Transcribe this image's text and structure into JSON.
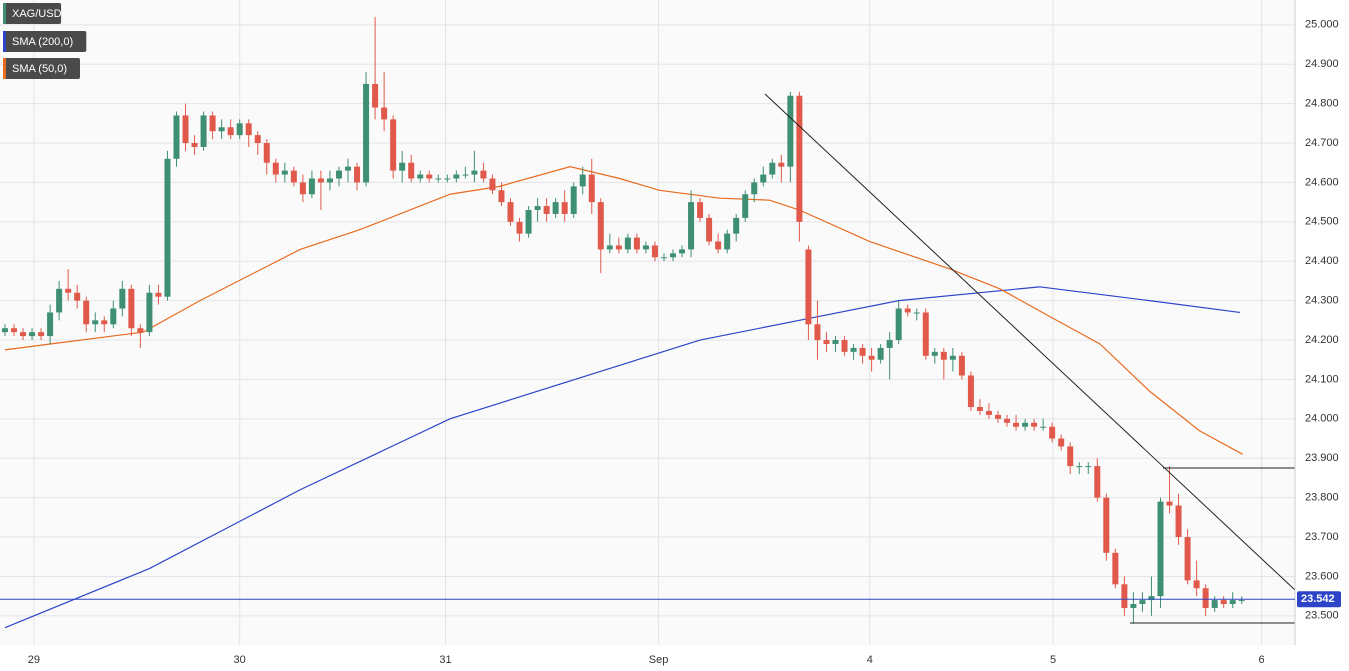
{
  "chart_data": {
    "type": "candlestick",
    "title": "XAG/USD",
    "up_color": "#3e8f74",
    "down_color": "#e0594a",
    "ylim": [
      23.426,
      25.063
    ],
    "yticks": [
      {
        "value": 23.5,
        "label": "23.500"
      },
      {
        "value": 23.6,
        "label": "23.600"
      },
      {
        "value": 23.7,
        "label": "23.700"
      },
      {
        "value": 23.8,
        "label": "23.800"
      },
      {
        "value": 23.9,
        "label": "23.900"
      },
      {
        "value": 24.0,
        "label": "24.000"
      },
      {
        "value": 24.1,
        "label": "24.100"
      },
      {
        "value": 24.2,
        "label": "24.200"
      },
      {
        "value": 24.3,
        "label": "24.300"
      },
      {
        "value": 24.4,
        "label": "24.400"
      },
      {
        "value": 24.5,
        "label": "24.500"
      },
      {
        "value": 24.6,
        "label": "24.600"
      },
      {
        "value": 24.7,
        "label": "24.700"
      },
      {
        "value": 24.8,
        "label": "24.800"
      },
      {
        "value": 24.9,
        "label": "24.900"
      },
      {
        "value": 25.0,
        "label": "25.000"
      }
    ],
    "xlim": [
      -0.55,
      142.9
    ],
    "xticks": [
      {
        "value": 3.2,
        "label": "29"
      },
      {
        "value": 26.0,
        "label": "30"
      },
      {
        "value": 48.8,
        "label": "31"
      },
      {
        "value": 72.4,
        "label": "Sep"
      },
      {
        "value": 95.8,
        "label": "4"
      },
      {
        "value": 116.1,
        "label": "5"
      },
      {
        "value": 139.2,
        "label": "6"
      }
    ],
    "grid": true,
    "last_price": 23.542,
    "candles": [
      [
        24.22,
        24.24,
        24.21,
        24.23
      ],
      [
        24.23,
        24.24,
        24.21,
        24.22
      ],
      [
        24.22,
        24.23,
        24.2,
        24.21
      ],
      [
        24.21,
        24.23,
        24.2,
        24.22
      ],
      [
        24.22,
        24.23,
        24.2,
        24.21
      ],
      [
        24.21,
        24.29,
        24.19,
        24.27
      ],
      [
        24.27,
        24.35,
        24.25,
        24.33
      ],
      [
        24.33,
        24.38,
        24.3,
        24.32
      ],
      [
        24.32,
        24.34,
        24.28,
        24.3
      ],
      [
        24.3,
        24.31,
        24.22,
        24.24
      ],
      [
        24.24,
        24.27,
        24.22,
        24.25
      ],
      [
        24.25,
        24.26,
        24.22,
        24.24
      ],
      [
        24.24,
        24.3,
        24.23,
        24.28
      ],
      [
        24.28,
        24.35,
        24.26,
        24.33
      ],
      [
        24.33,
        24.34,
        24.21,
        24.23
      ],
      [
        24.23,
        24.24,
        24.18,
        24.22
      ],
      [
        24.22,
        24.34,
        24.21,
        24.32
      ],
      [
        24.32,
        24.34,
        24.29,
        24.31
      ],
      [
        24.31,
        24.68,
        24.3,
        24.66
      ],
      [
        24.66,
        24.78,
        24.64,
        24.77
      ],
      [
        24.77,
        24.8,
        24.68,
        24.7
      ],
      [
        24.7,
        24.72,
        24.67,
        24.69
      ],
      [
        24.69,
        24.78,
        24.68,
        24.77
      ],
      [
        24.77,
        24.78,
        24.71,
        24.73
      ],
      [
        24.73,
        24.76,
        24.71,
        24.74
      ],
      [
        24.74,
        24.76,
        24.71,
        24.72
      ],
      [
        24.72,
        24.76,
        24.71,
        24.75
      ],
      [
        24.75,
        24.76,
        24.69,
        24.72
      ],
      [
        24.72,
        24.73,
        24.67,
        24.7
      ],
      [
        24.7,
        24.71,
        24.62,
        24.65
      ],
      [
        24.65,
        24.66,
        24.6,
        24.62
      ],
      [
        24.62,
        24.65,
        24.6,
        24.63
      ],
      [
        24.63,
        24.64,
        24.59,
        24.6
      ],
      [
        24.6,
        24.62,
        24.55,
        24.57
      ],
      [
        24.57,
        24.63,
        24.56,
        24.61
      ],
      [
        24.61,
        24.63,
        24.53,
        24.6
      ],
      [
        24.6,
        24.63,
        24.58,
        24.61
      ],
      [
        24.61,
        24.64,
        24.59,
        24.63
      ],
      [
        24.63,
        24.66,
        24.6,
        24.64
      ],
      [
        24.64,
        24.65,
        24.58,
        24.6
      ],
      [
        24.6,
        24.88,
        24.59,
        24.85
      ],
      [
        24.85,
        25.02,
        24.76,
        24.79
      ],
      [
        24.79,
        24.88,
        24.73,
        24.76
      ],
      [
        24.76,
        24.77,
        24.61,
        24.63
      ],
      [
        24.63,
        24.68,
        24.6,
        24.65
      ],
      [
        24.65,
        24.67,
        24.6,
        24.61
      ],
      [
        24.61,
        24.63,
        24.6,
        24.62
      ],
      [
        24.62,
        24.63,
        24.6,
        24.61
      ],
      [
        24.61,
        24.62,
        24.6,
        24.61
      ],
      [
        24.61,
        24.62,
        24.6,
        24.61
      ],
      [
        24.61,
        24.63,
        24.6,
        24.62
      ],
      [
        24.62,
        24.64,
        24.61,
        24.62
      ],
      [
        24.62,
        24.68,
        24.6,
        24.63
      ],
      [
        24.63,
        24.65,
        24.6,
        24.61
      ],
      [
        24.61,
        24.62,
        24.57,
        24.58
      ],
      [
        24.58,
        24.6,
        24.54,
        24.55
      ],
      [
        24.55,
        24.56,
        24.49,
        24.5
      ],
      [
        24.5,
        24.51,
        24.45,
        24.47
      ],
      [
        24.47,
        24.54,
        24.46,
        24.53
      ],
      [
        24.53,
        24.56,
        24.5,
        24.54
      ],
      [
        24.54,
        24.56,
        24.5,
        24.52
      ],
      [
        24.52,
        24.56,
        24.51,
        24.55
      ],
      [
        24.55,
        24.58,
        24.5,
        24.52
      ],
      [
        24.52,
        24.6,
        24.51,
        24.59
      ],
      [
        24.59,
        24.64,
        24.57,
        24.62
      ],
      [
        24.62,
        24.66,
        24.52,
        24.55
      ],
      [
        24.55,
        24.56,
        24.37,
        24.43
      ],
      [
        24.43,
        24.47,
        24.42,
        24.44
      ],
      [
        24.44,
        24.46,
        24.42,
        24.43
      ],
      [
        24.43,
        24.47,
        24.42,
        24.46
      ],
      [
        24.46,
        24.47,
        24.42,
        24.43
      ],
      [
        24.43,
        24.45,
        24.42,
        24.44
      ],
      [
        24.44,
        24.45,
        24.4,
        24.41
      ],
      [
        24.41,
        24.42,
        24.4,
        24.41
      ],
      [
        24.41,
        24.43,
        24.4,
        24.42
      ],
      [
        24.42,
        24.44,
        24.41,
        24.43
      ],
      [
        24.43,
        24.58,
        24.41,
        24.55
      ],
      [
        24.55,
        24.56,
        24.5,
        24.51
      ],
      [
        24.51,
        24.52,
        24.44,
        24.45
      ],
      [
        24.45,
        24.47,
        24.42,
        24.43
      ],
      [
        24.43,
        24.48,
        24.42,
        24.47
      ],
      [
        24.47,
        24.52,
        24.45,
        24.51
      ],
      [
        24.51,
        24.58,
        24.5,
        24.57
      ],
      [
        24.57,
        24.61,
        24.55,
        24.6
      ],
      [
        24.6,
        24.64,
        24.59,
        24.62
      ],
      [
        24.62,
        24.66,
        24.61,
        24.65
      ],
      [
        24.65,
        24.67,
        24.6,
        24.64
      ],
      [
        24.64,
        24.83,
        24.6,
        24.82
      ],
      [
        24.82,
        24.83,
        24.45,
        24.5
      ],
      [
        24.43,
        24.44,
        24.2,
        24.24
      ],
      [
        24.24,
        24.3,
        24.15,
        24.2
      ],
      [
        24.2,
        24.22,
        24.17,
        24.19
      ],
      [
        24.19,
        24.21,
        24.17,
        24.2
      ],
      [
        24.2,
        24.21,
        24.16,
        24.17
      ],
      [
        24.17,
        24.19,
        24.15,
        24.18
      ],
      [
        24.18,
        24.19,
        24.14,
        24.16
      ],
      [
        24.16,
        24.18,
        24.12,
        24.15
      ],
      [
        24.15,
        24.19,
        24.14,
        24.18
      ],
      [
        24.18,
        24.22,
        24.1,
        24.2
      ],
      [
        24.2,
        24.3,
        24.19,
        24.28
      ],
      [
        24.28,
        24.29,
        24.26,
        24.27
      ],
      [
        24.27,
        24.28,
        24.25,
        24.27
      ],
      [
        24.27,
        24.28,
        24.15,
        24.16
      ],
      [
        24.16,
        24.18,
        24.14,
        24.17
      ],
      [
        24.17,
        24.18,
        24.1,
        24.15
      ],
      [
        24.15,
        24.18,
        24.12,
        24.16
      ],
      [
        24.16,
        24.17,
        24.1,
        24.11
      ],
      [
        24.11,
        24.12,
        24.02,
        24.03
      ],
      [
        24.03,
        24.05,
        24.01,
        24.02
      ],
      [
        24.02,
        24.04,
        24.0,
        24.01
      ],
      [
        24.01,
        24.02,
        23.99,
        24.0
      ],
      [
        24.0,
        24.01,
        23.98,
        23.99
      ],
      [
        23.99,
        24.01,
        23.97,
        23.98
      ],
      [
        23.98,
        24.0,
        23.97,
        23.99
      ],
      [
        23.99,
        24.0,
        23.97,
        23.98
      ],
      [
        23.98,
        24.0,
        23.97,
        23.98
      ],
      [
        23.98,
        23.99,
        23.94,
        23.95
      ],
      [
        23.95,
        23.96,
        23.92,
        23.93
      ],
      [
        23.93,
        23.94,
        23.86,
        23.88
      ],
      [
        23.88,
        23.89,
        23.86,
        23.88
      ],
      [
        23.88,
        23.89,
        23.86,
        23.88
      ],
      [
        23.88,
        23.9,
        23.79,
        23.8
      ],
      [
        23.8,
        23.81,
        23.64,
        23.66
      ],
      [
        23.66,
        23.67,
        23.57,
        23.58
      ],
      [
        23.58,
        23.6,
        23.5,
        23.52
      ],
      [
        23.52,
        23.56,
        23.48,
        23.53
      ],
      [
        23.53,
        23.56,
        23.51,
        23.54
      ],
      [
        23.54,
        23.6,
        23.5,
        23.55
      ],
      [
        23.55,
        23.8,
        23.52,
        23.79
      ],
      [
        23.79,
        23.88,
        23.76,
        23.78
      ],
      [
        23.78,
        23.81,
        23.68,
        23.7
      ],
      [
        23.7,
        23.72,
        23.58,
        23.59
      ],
      [
        23.59,
        23.64,
        23.55,
        23.57
      ],
      [
        23.57,
        23.58,
        23.5,
        23.52
      ],
      [
        23.52,
        23.55,
        23.51,
        23.54
      ],
      [
        23.54,
        23.55,
        23.52,
        23.53
      ],
      [
        23.53,
        23.56,
        23.52,
        23.54
      ],
      [
        23.54,
        23.55,
        23.53,
        23.54
      ]
    ],
    "series": [
      {
        "name": "SMA (200,0)",
        "color": "#2d44c8",
        "x": [
          0,
          16,
          32.7,
          49.3,
          65.9,
          77,
          88,
          99,
          114.6,
          126.8,
          136.8
        ],
        "values": [
          23.47,
          23.62,
          23.82,
          24.0,
          24.12,
          24.2,
          24.25,
          24.3,
          24.335,
          24.3,
          24.27
        ]
      },
      {
        "name": "SMA (50,0)",
        "color": "#e86b1f",
        "x": [
          0,
          5,
          15.3,
          21.6,
          32.7,
          39.3,
          49.3,
          54.8,
          62.6,
          68.1,
          72.5,
          79.2,
          84.7,
          88,
          95.8,
          104.7,
          110.2,
          115.7,
          121.3,
          126.8,
          132.3,
          137.1
        ],
        "values": [
          24.175,
          24.19,
          24.22,
          24.3,
          24.43,
          24.48,
          24.57,
          24.59,
          24.64,
          24.61,
          24.58,
          24.56,
          24.555,
          24.53,
          24.45,
          24.38,
          24.33,
          24.26,
          24.19,
          24.07,
          23.97,
          23.91
        ]
      }
    ]
  }
}
